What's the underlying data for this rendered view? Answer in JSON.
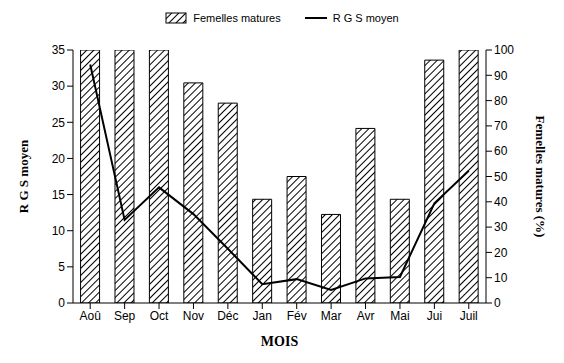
{
  "chart_data": {
    "type": "bar",
    "categories": [
      "Aoû",
      "Sep",
      "Oct",
      "Nov",
      "Déc",
      "Jan",
      "Fév",
      "Mar",
      "Avr",
      "Mai",
      "Jui",
      "Juil"
    ],
    "series": [
      {
        "name": "Femelles matures",
        "type": "bar",
        "axis": "y2",
        "color": "#000000",
        "values": [
          100,
          100,
          100,
          87,
          79,
          41,
          50,
          35,
          69,
          41,
          96,
          100
        ]
      },
      {
        "name": "R G S moyen",
        "type": "line",
        "axis": "y",
        "color": "#000000",
        "marker": "none",
        "values": [
          33,
          11.5,
          16,
          12.3,
          7.5,
          2.6,
          3.3,
          1.8,
          3.4,
          3.6,
          13.8,
          18.3
        ]
      }
    ],
    "x_label": "MOIS",
    "y_label": "R G S moyen",
    "y2_label": "Femelles matures (%)",
    "ylim": [
      0,
      35
    ],
    "yticks": [
      0,
      5,
      10,
      15,
      20,
      25,
      30,
      35
    ],
    "y2lim": [
      0,
      100
    ],
    "y2ticks": [
      0,
      10,
      20,
      30,
      40,
      50,
      60,
      70,
      80,
      90,
      100
    ],
    "grid": false,
    "legend": "top"
  }
}
